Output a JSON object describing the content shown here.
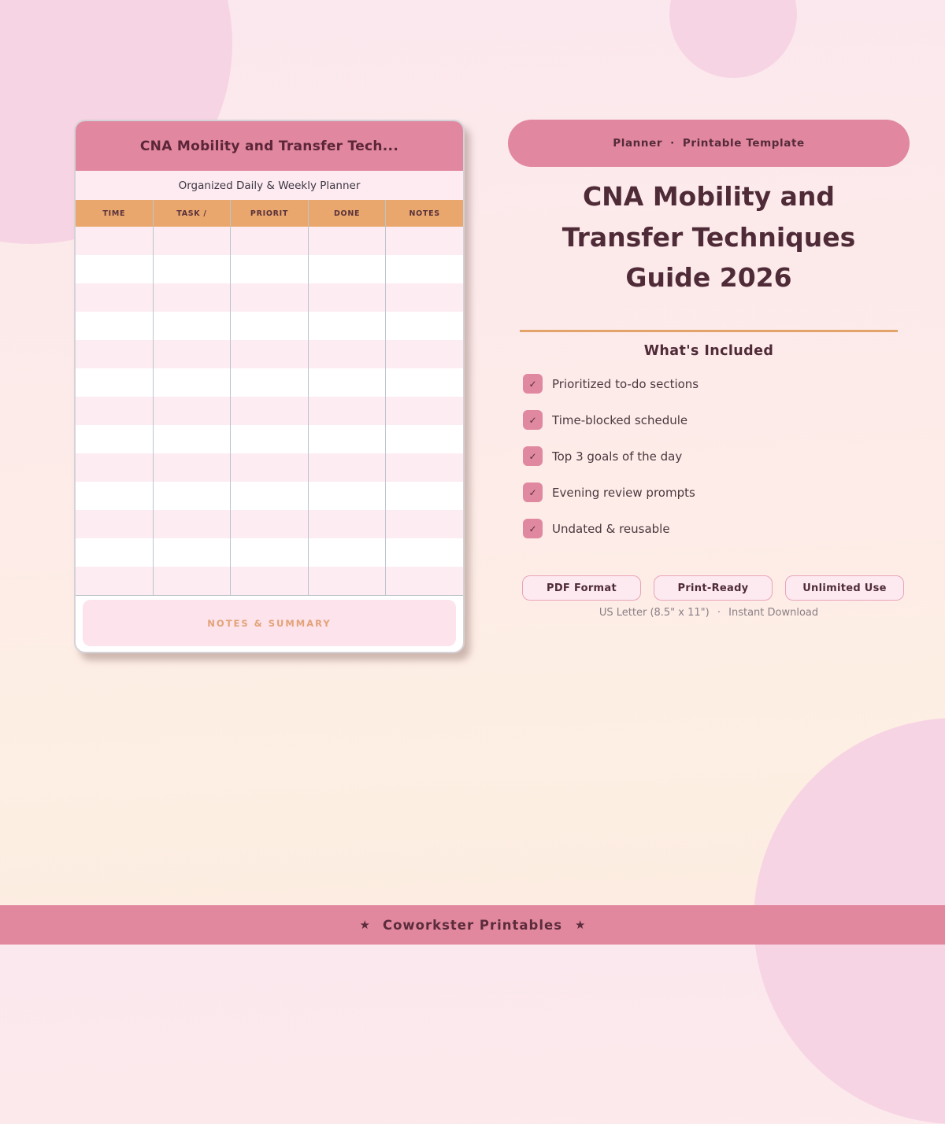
{
  "preview_card": {
    "title": "CNA Mobility and Transfer Tech...",
    "subtitle": "Organized Daily & Weekly Planner",
    "table": {
      "columns": [
        "TIME",
        "TASK /",
        "PRIORIT",
        "DONE",
        "NOTES"
      ],
      "row_count": 13
    },
    "notes_label": "NOTES & SUMMARY"
  },
  "details": {
    "badge": {
      "category": "Planner",
      "separator": "·",
      "type": "Printable Template"
    },
    "title_lines": [
      "CNA Mobility and",
      "Transfer Techniques",
      "Guide 2026"
    ],
    "included_heading": "What's Included",
    "check_glyph": "✓",
    "included_items": [
      "Prioritized to-do sections",
      "Time-blocked schedule",
      "Top 3 goals of the day",
      "Evening review prompts",
      "Undated & reusable"
    ],
    "feature_buttons": [
      "PDF Format",
      "Print-Ready",
      "Unlimited Use"
    ],
    "meta": {
      "size": "US Letter (8.5\" x 11\")",
      "separator": "·",
      "delivery": "Instant Download"
    }
  },
  "footer": {
    "star": "★",
    "brand": "Coworkster Printables"
  },
  "colors": {
    "primary_pink": "#e1879f",
    "accent_orange": "#e9a76e",
    "heading_maroon": "#4f2b38",
    "decor_circle_pink": "#f7d4e3",
    "row_pink": "#fdedf2",
    "button_bg_pink": "#fdeaf1"
  }
}
